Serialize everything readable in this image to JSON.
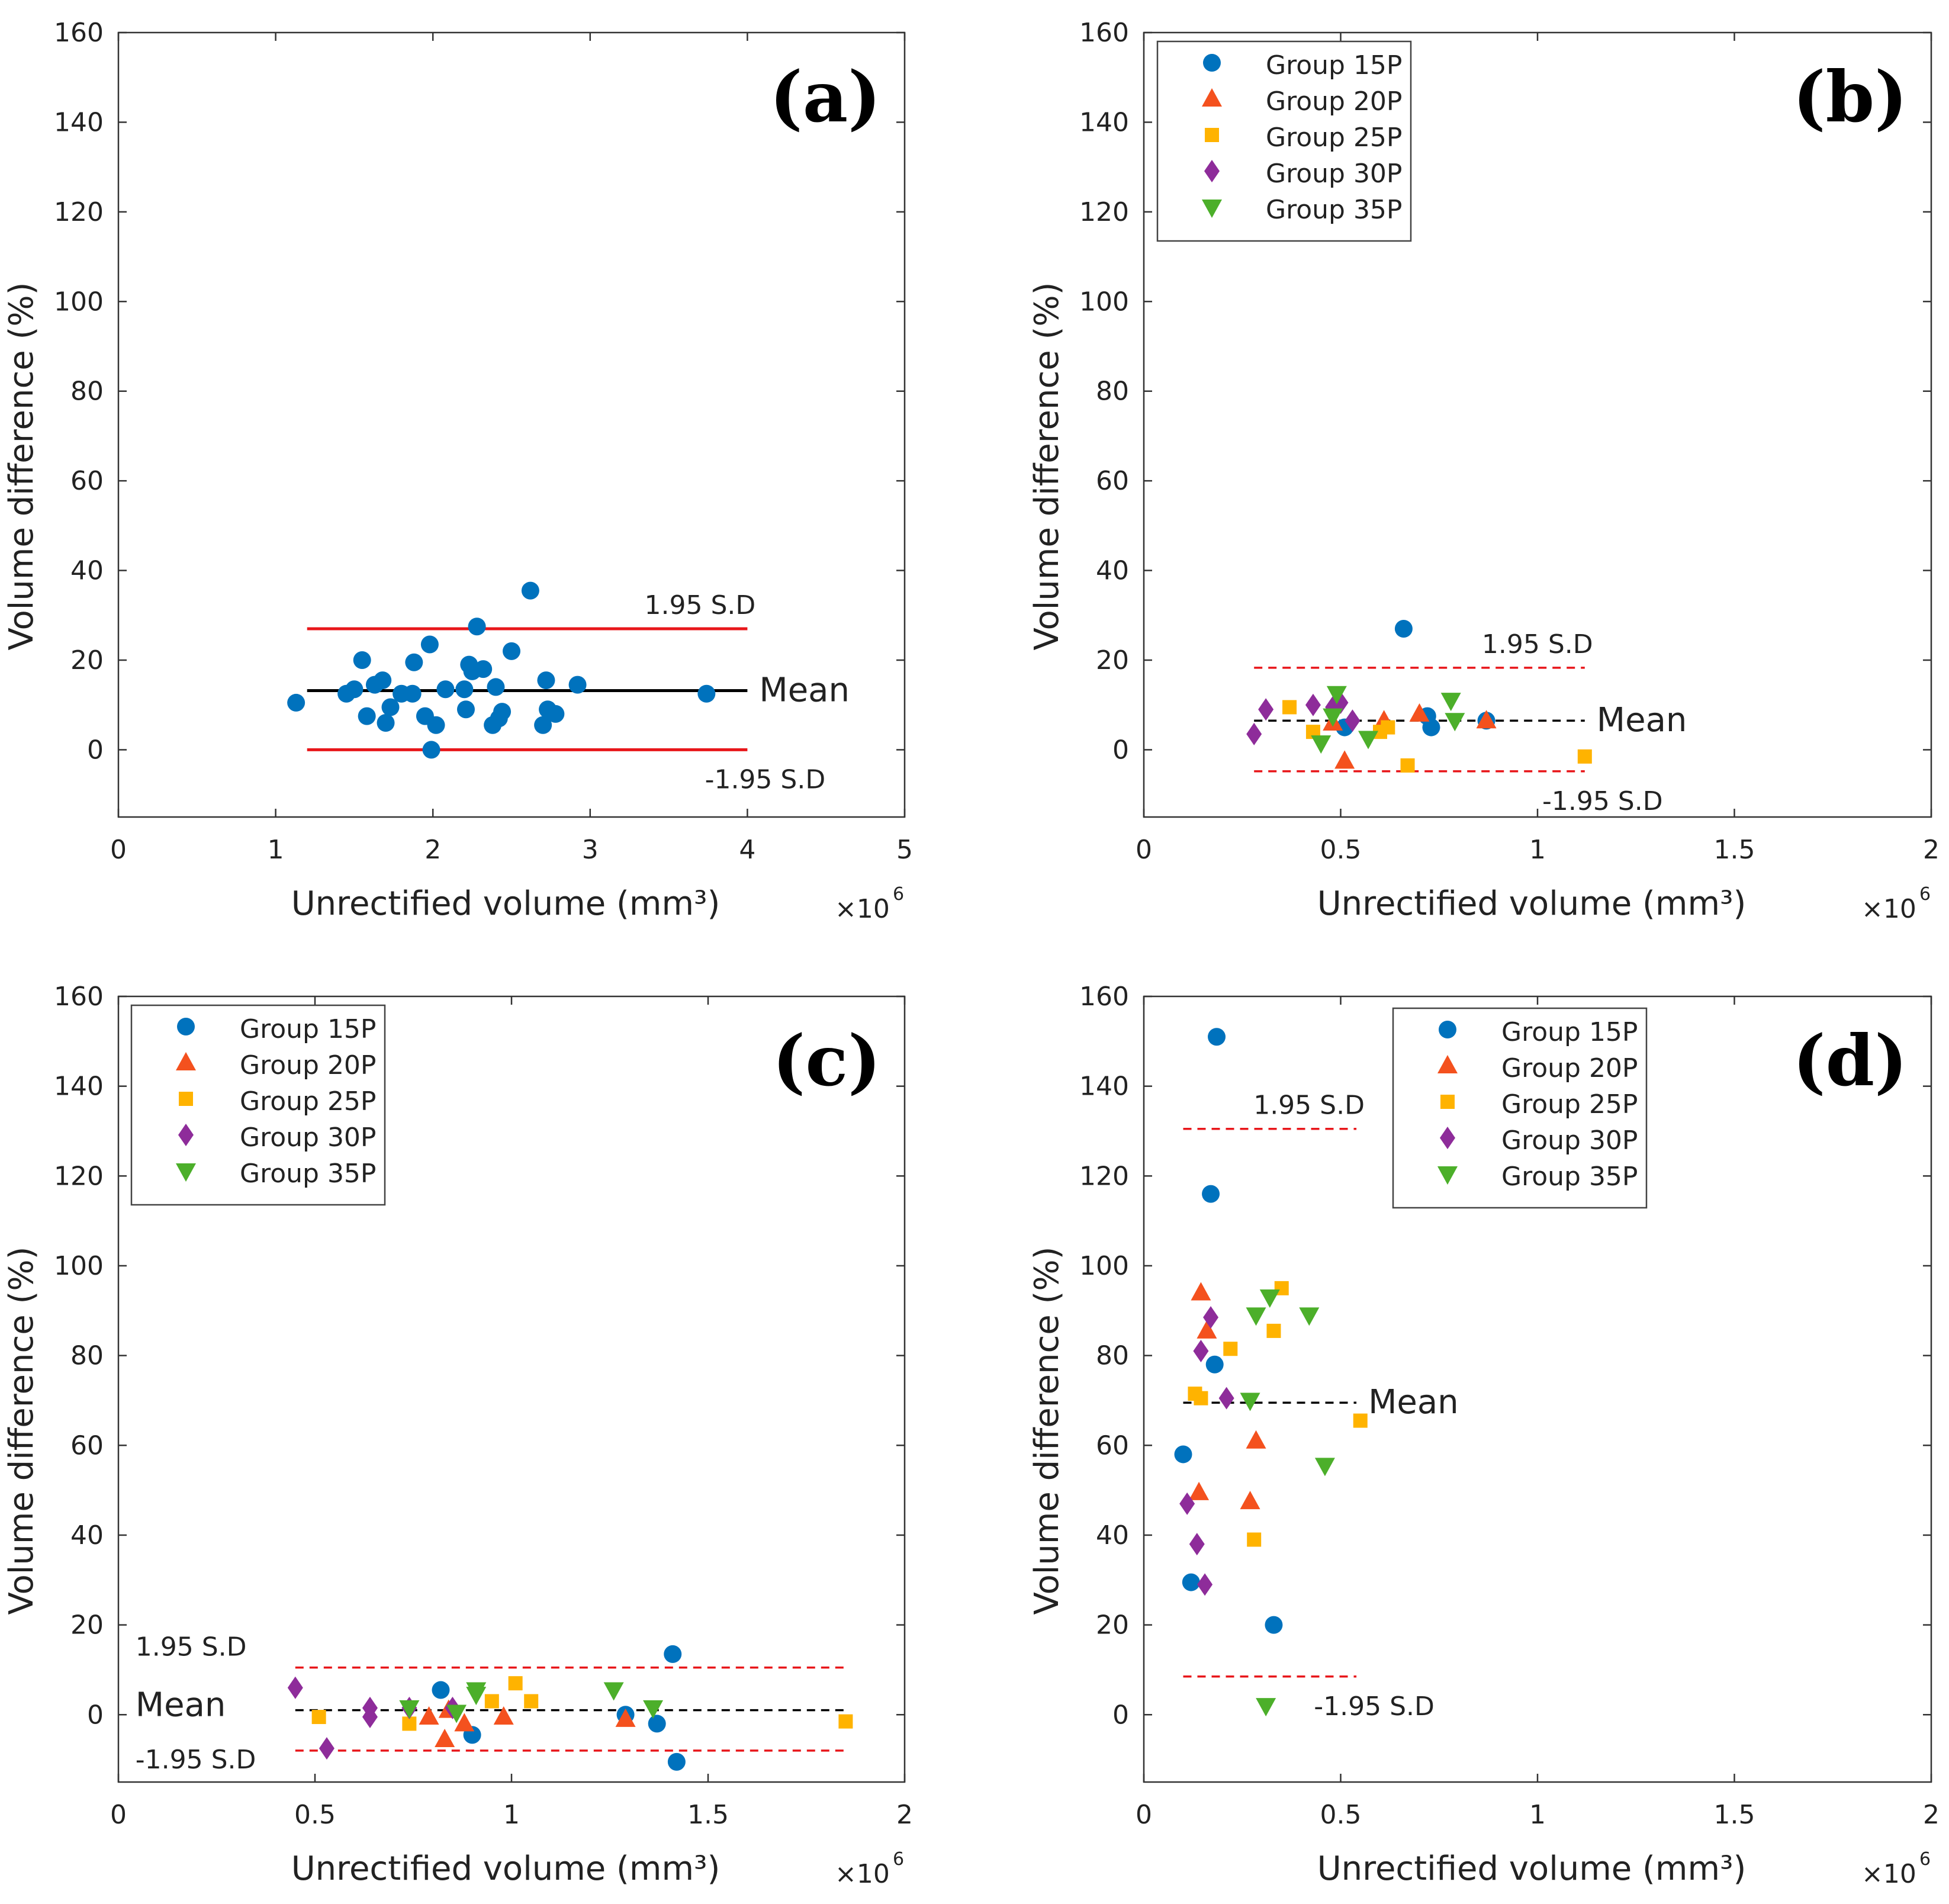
{
  "chart_data": [
    {
      "type": "scatter",
      "panel_label": "(a)",
      "xlabel": "Unrectified volume (mm³)",
      "ylabel": "Volume difference (%)",
      "x_multiplier": "×10",
      "x_multiplier_exp": "6",
      "xlim": [
        0,
        5
      ],
      "ylim": [
        -15,
        160
      ],
      "xticks": [
        0,
        1,
        2,
        3,
        4,
        5
      ],
      "xtick_labels": [
        "0",
        "1",
        "2",
        "3",
        "4",
        "5"
      ],
      "yticks": [
        0,
        20,
        40,
        60,
        80,
        100,
        120,
        140,
        160
      ],
      "ytick_labels": [
        "0",
        "20",
        "40",
        "60",
        "80",
        "100",
        "120",
        "140",
        "160"
      ],
      "legend": null,
      "lines": [
        {
          "kind": "upper",
          "label": "1.95 S.D",
          "y": 27,
          "x": [
            1.2,
            4.0
          ],
          "style": "solid",
          "color": "#e8161a",
          "label_anchor": "above-end"
        },
        {
          "kind": "mean",
          "label": "Mean",
          "y": 13.2,
          "x": [
            1.2,
            4.0
          ],
          "style": "solid",
          "color": "#000000",
          "label_anchor": "right"
        },
        {
          "kind": "lower",
          "label": "-1.95 S.D",
          "y": 0,
          "x": [
            1.2,
            4.0
          ],
          "style": "solid",
          "color": "#e8161a",
          "label_anchor": "below-end"
        }
      ],
      "series": [
        {
          "name": "Group 15P",
          "marker": "circle",
          "color": "#0072bd",
          "points": [
            [
              1.13,
              10.5
            ],
            [
              1.45,
              12.5
            ],
            [
              1.5,
              13.5
            ],
            [
              1.55,
              20
            ],
            [
              1.58,
              7.5
            ],
            [
              1.63,
              14.5
            ],
            [
              1.68,
              15.5
            ],
            [
              1.7,
              6
            ],
            [
              1.73,
              9.5
            ],
            [
              1.8,
              12.5
            ],
            [
              1.87,
              12.5
            ],
            [
              1.88,
              19.5
            ],
            [
              1.95,
              7.5
            ],
            [
              1.98,
              23.5
            ],
            [
              1.99,
              0
            ],
            [
              2.02,
              5.5
            ],
            [
              2.08,
              13.5
            ],
            [
              2.2,
              13.5
            ],
            [
              2.21,
              9
            ],
            [
              2.23,
              19
            ],
            [
              2.25,
              17.5
            ],
            [
              2.28,
              27.5
            ],
            [
              2.32,
              18
            ],
            [
              2.38,
              5.5
            ],
            [
              2.4,
              14
            ],
            [
              2.42,
              7
            ],
            [
              2.44,
              8.5
            ],
            [
              2.5,
              22
            ],
            [
              2.62,
              35.5
            ],
            [
              2.7,
              5.5
            ],
            [
              2.72,
              15.5
            ],
            [
              2.73,
              9
            ],
            [
              2.78,
              8
            ],
            [
              2.92,
              14.5
            ],
            [
              3.74,
              12.5
            ]
          ]
        }
      ]
    },
    {
      "type": "scatter",
      "panel_label": "(b)",
      "xlabel": "Unrectified volume (mm³)",
      "ylabel": "Volume difference (%)",
      "x_multiplier": "×10",
      "x_multiplier_exp": "6",
      "xlim": [
        0,
        2
      ],
      "ylim": [
        -15,
        160
      ],
      "xticks": [
        0,
        0.5,
        1,
        1.5,
        2
      ],
      "xtick_labels": [
        "0",
        "0.5",
        "1",
        "1.5",
        "2"
      ],
      "yticks": [
        0,
        20,
        40,
        60,
        80,
        100,
        120,
        140,
        160
      ],
      "ytick_labels": [
        "0",
        "20",
        "40",
        "60",
        "80",
        "100",
        "120",
        "140",
        "160"
      ],
      "legend": "top-left",
      "lines": [
        {
          "kind": "upper",
          "label": "1.95 S.D",
          "y": 18.3,
          "x": [
            0.28,
            1.12
          ],
          "style": "dashed",
          "color": "#e8161a",
          "label_anchor": "above-end"
        },
        {
          "kind": "mean",
          "label": "Mean",
          "y": 6.5,
          "x": [
            0.28,
            1.12
          ],
          "style": "dashed",
          "color": "#000000",
          "label_anchor": "right"
        },
        {
          "kind": "lower",
          "label": "-1.95 S.D",
          "y": -4.8,
          "x": [
            0.28,
            1.12
          ],
          "style": "dashed",
          "color": "#e8161a",
          "label_anchor": "below-end"
        }
      ],
      "series": [
        {
          "name": "Group 15P",
          "marker": "circle",
          "color": "#0072bd",
          "points": [
            [
              0.51,
              5
            ],
            [
              0.66,
              27
            ],
            [
              0.72,
              7.5
            ],
            [
              0.73,
              5
            ],
            [
              0.87,
              6.5
            ]
          ]
        },
        {
          "name": "Group 20P",
          "marker": "triangle-up",
          "color": "#f4511e",
          "points": [
            [
              0.48,
              6
            ],
            [
              0.51,
              -2.5
            ],
            [
              0.61,
              6.5
            ],
            [
              0.7,
              8
            ],
            [
              0.87,
              6.5
            ]
          ]
        },
        {
          "name": "Group 25P",
          "marker": "square",
          "color": "#ffb300",
          "points": [
            [
              0.37,
              9.5
            ],
            [
              0.43,
              4
            ],
            [
              0.6,
              4
            ],
            [
              0.62,
              5
            ],
            [
              0.67,
              -3.5
            ],
            [
              1.12,
              -1.5
            ]
          ]
        },
        {
          "name": "Group 30P",
          "marker": "diamond",
          "color": "#8e2c9a",
          "points": [
            [
              0.28,
              3.5
            ],
            [
              0.31,
              9
            ],
            [
              0.43,
              10
            ],
            [
              0.48,
              9.5
            ],
            [
              0.5,
              10.5
            ],
            [
              0.53,
              6.5
            ]
          ]
        },
        {
          "name": "Group 35P",
          "marker": "triangle-down",
          "color": "#4caf2a",
          "points": [
            [
              0.45,
              1.5
            ],
            [
              0.48,
              7.5
            ],
            [
              0.49,
              12.5
            ],
            [
              0.57,
              2.5
            ],
            [
              0.78,
              11
            ],
            [
              0.79,
              6.5
            ]
          ]
        }
      ]
    },
    {
      "type": "scatter",
      "panel_label": "(c)",
      "xlabel": "Unrectified volume (mm³)",
      "ylabel": "Volume difference (%)",
      "x_multiplier": "×10",
      "x_multiplier_exp": "6",
      "xlim": [
        0,
        2
      ],
      "ylim": [
        -15,
        160
      ],
      "xticks": [
        0,
        0.5,
        1,
        1.5,
        2
      ],
      "xtick_labels": [
        "0",
        "0.5",
        "1",
        "1.5",
        "2"
      ],
      "yticks": [
        0,
        20,
        40,
        60,
        80,
        100,
        120,
        140,
        160
      ],
      "ytick_labels": [
        "0",
        "20",
        "40",
        "60",
        "80",
        "100",
        "120",
        "140",
        "160"
      ],
      "legend": "top-left",
      "lines": [
        {
          "kind": "upper",
          "label": "1.95 S.D",
          "y": 10.5,
          "x": [
            0.45,
            1.85
          ],
          "style": "dashed",
          "color": "#e8161a",
          "label_anchor": "above-start"
        },
        {
          "kind": "mean",
          "label": "Mean",
          "y": 1,
          "x": [
            0.45,
            1.85
          ],
          "style": "dashed",
          "color": "#000000",
          "label_anchor": "left"
        },
        {
          "kind": "lower",
          "label": "-1.95 S.D",
          "y": -8,
          "x": [
            0.45,
            1.85
          ],
          "style": "dashed",
          "color": "#e8161a",
          "label_anchor": "below-start"
        }
      ],
      "series": [
        {
          "name": "Group 15P",
          "marker": "circle",
          "color": "#0072bd",
          "points": [
            [
              0.82,
              5.5
            ],
            [
              0.9,
              -4.5
            ],
            [
              1.29,
              0
            ],
            [
              1.37,
              -2
            ],
            [
              1.41,
              13.5
            ],
            [
              1.42,
              -10.5
            ]
          ]
        },
        {
          "name": "Group 20P",
          "marker": "triangle-up",
          "color": "#f4511e",
          "points": [
            [
              0.79,
              -0.5
            ],
            [
              0.83,
              -5.5
            ],
            [
              0.84,
              1
            ],
            [
              0.88,
              -2
            ],
            [
              0.98,
              -0.5
            ],
            [
              1.29,
              -1
            ]
          ]
        },
        {
          "name": "Group 25P",
          "marker": "square",
          "color": "#ffb300",
          "points": [
            [
              0.51,
              -0.5
            ],
            [
              0.74,
              -2
            ],
            [
              0.95,
              3
            ],
            [
              1.01,
              7
            ],
            [
              1.05,
              3
            ],
            [
              1.85,
              -1.5
            ]
          ]
        },
        {
          "name": "Group 30P",
          "marker": "diamond",
          "color": "#8e2c9a",
          "points": [
            [
              0.45,
              6
            ],
            [
              0.53,
              -7.5
            ],
            [
              0.64,
              -0.5
            ],
            [
              0.64,
              1.5
            ],
            [
              0.74,
              1.5
            ],
            [
              0.85,
              1.5
            ]
          ]
        },
        {
          "name": "Group 35P",
          "marker": "triangle-down",
          "color": "#4caf2a",
          "points": [
            [
              0.74,
              1.5
            ],
            [
              0.86,
              0.5
            ],
            [
              0.91,
              4.5
            ],
            [
              0.91,
              5.5
            ],
            [
              1.26,
              5.5
            ],
            [
              1.36,
              1.5
            ]
          ]
        }
      ]
    },
    {
      "type": "scatter",
      "panel_label": "(d)",
      "xlabel": "Unrectified volume (mm³)",
      "ylabel": "Volume difference (%)",
      "x_multiplier": "×10",
      "x_multiplier_exp": "6",
      "xlim": [
        0,
        2
      ],
      "ylim": [
        -15,
        160
      ],
      "xticks": [
        0,
        0.5,
        1,
        1.5,
        2
      ],
      "xtick_labels": [
        "0",
        "0.5",
        "1",
        "1.5",
        "2"
      ],
      "yticks": [
        0,
        20,
        40,
        60,
        80,
        100,
        120,
        140,
        160
      ],
      "ytick_labels": [
        "0",
        "20",
        "40",
        "60",
        "80",
        "100",
        "120",
        "140",
        "160"
      ],
      "legend": "top-center",
      "lines": [
        {
          "kind": "upper",
          "label": "1.95 S.D",
          "y": 130.5,
          "x": [
            0.1,
            0.54
          ],
          "style": "dashed",
          "color": "#e8161a",
          "label_anchor": "above-end"
        },
        {
          "kind": "mean",
          "label": "Mean",
          "y": 69.5,
          "x": [
            0.1,
            0.54
          ],
          "style": "dashed",
          "color": "#000000",
          "label_anchor": "right"
        },
        {
          "kind": "lower",
          "label": "-1.95 S.D",
          "y": 8.5,
          "x": [
            0.1,
            0.54
          ],
          "style": "dashed",
          "color": "#e8161a",
          "label_anchor": "below-end"
        }
      ],
      "series": [
        {
          "name": "Group 15P",
          "marker": "circle",
          "color": "#0072bd",
          "points": [
            [
              0.1,
              58
            ],
            [
              0.12,
              29.5
            ],
            [
              0.17,
              116
            ],
            [
              0.18,
              78
            ],
            [
              0.185,
              151
            ],
            [
              0.33,
              20
            ]
          ]
        },
        {
          "name": "Group 20P",
          "marker": "triangle-up",
          "color": "#f4511e",
          "points": [
            [
              0.14,
              49.5
            ],
            [
              0.145,
              94
            ],
            [
              0.16,
              85.5
            ],
            [
              0.27,
              47.5
            ],
            [
              0.285,
              61
            ]
          ]
        },
        {
          "name": "Group 25P",
          "marker": "square",
          "color": "#ffb300",
          "points": [
            [
              0.13,
              71.5
            ],
            [
              0.145,
              70.5
            ],
            [
              0.22,
              81.5
            ],
            [
              0.28,
              39
            ],
            [
              0.33,
              85.5
            ],
            [
              0.35,
              95
            ],
            [
              0.55,
              65.5
            ]
          ]
        },
        {
          "name": "Group 30P",
          "marker": "diamond",
          "color": "#8e2c9a",
          "points": [
            [
              0.11,
              47
            ],
            [
              0.135,
              38
            ],
            [
              0.145,
              81
            ],
            [
              0.155,
              29
            ],
            [
              0.17,
              88.5
            ],
            [
              0.21,
              70.5
            ]
          ]
        },
        {
          "name": "Group 35P",
          "marker": "triangle-down",
          "color": "#4caf2a",
          "points": [
            [
              0.27,
              70
            ],
            [
              0.285,
              89
            ],
            [
              0.31,
              2
            ],
            [
              0.32,
              93
            ],
            [
              0.42,
              89
            ],
            [
              0.46,
              55.5
            ]
          ]
        }
      ]
    }
  ]
}
